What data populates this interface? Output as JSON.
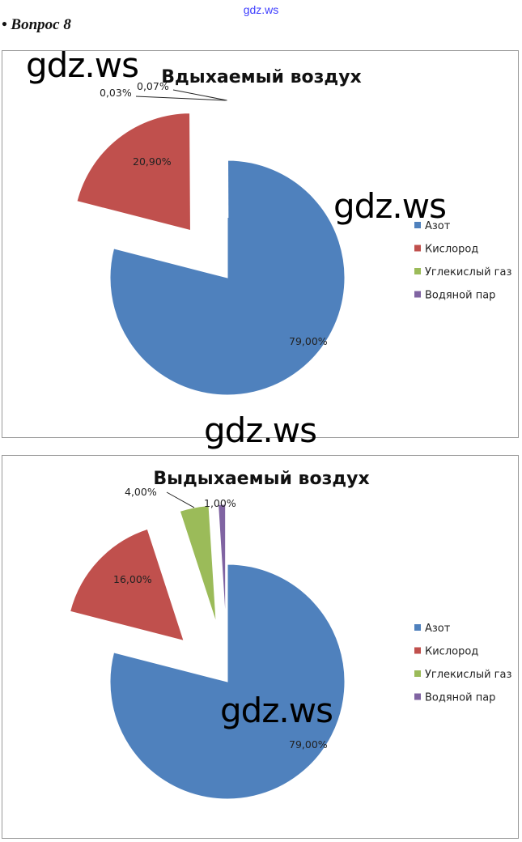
{
  "watermark_top": "gdz.ws",
  "heading": "• Вопрос 8",
  "watermark": "gdz.ws",
  "colors": {
    "Азот": "#4f81bd",
    "Кислород": "#c0504d",
    "Углекислый газ": "#9bbb59",
    "Водяной пар": "#8064a2"
  },
  "chart_data": [
    {
      "type": "pie",
      "title": "Вдыхаемый воздух",
      "categories": [
        "Азот",
        "Кислород",
        "Углекислый газ",
        "Водяной пар"
      ],
      "values": [
        79.0,
        20.9,
        0.03,
        0.07
      ],
      "labels": [
        "79,00%",
        "20,90%",
        "0,03%",
        "0,07%"
      ],
      "exploded": [
        false,
        true,
        true,
        true
      ],
      "legend": "right"
    },
    {
      "type": "pie",
      "title": "Выдыхаемый воздух",
      "categories": [
        "Азот",
        "Кислород",
        "Углекислый газ",
        "Водяной пар"
      ],
      "values": [
        79.0,
        16.0,
        4.0,
        1.0
      ],
      "labels": [
        "79,00%",
        "16,00%",
        "4,00%",
        "1,00%"
      ],
      "exploded": [
        false,
        true,
        true,
        true
      ],
      "legend": "right"
    }
  ]
}
